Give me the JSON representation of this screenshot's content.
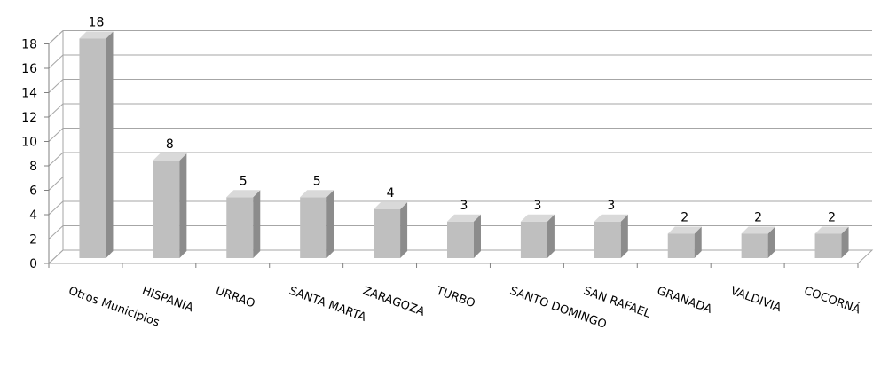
{
  "chart_data": {
    "type": "bar",
    "title": "",
    "xlabel": "",
    "ylabel": "",
    "categories": [
      "Otros Municipios",
      "HISPANIA",
      "URRAO",
      "SANTA MARTA",
      "ZARAGOZA",
      "TURBO",
      "SANTO DOMINGO",
      "SAN RAFAEL",
      "GRANADA",
      "VALDIVIA",
      "COCORNÁ"
    ],
    "values": [
      18,
      8,
      5,
      5,
      4,
      3,
      3,
      3,
      2,
      2,
      2
    ],
    "ylim": [
      0,
      18
    ],
    "yticks": [
      0,
      2,
      4,
      6,
      8,
      10,
      12,
      14,
      16,
      18
    ],
    "grid": true,
    "style": "3d-column",
    "colors": {
      "bar_front": "#bfbfbf",
      "bar_side": "#8c8c8c",
      "bar_top": "#d9d9d9",
      "grid": "#a6a6a6"
    }
  }
}
